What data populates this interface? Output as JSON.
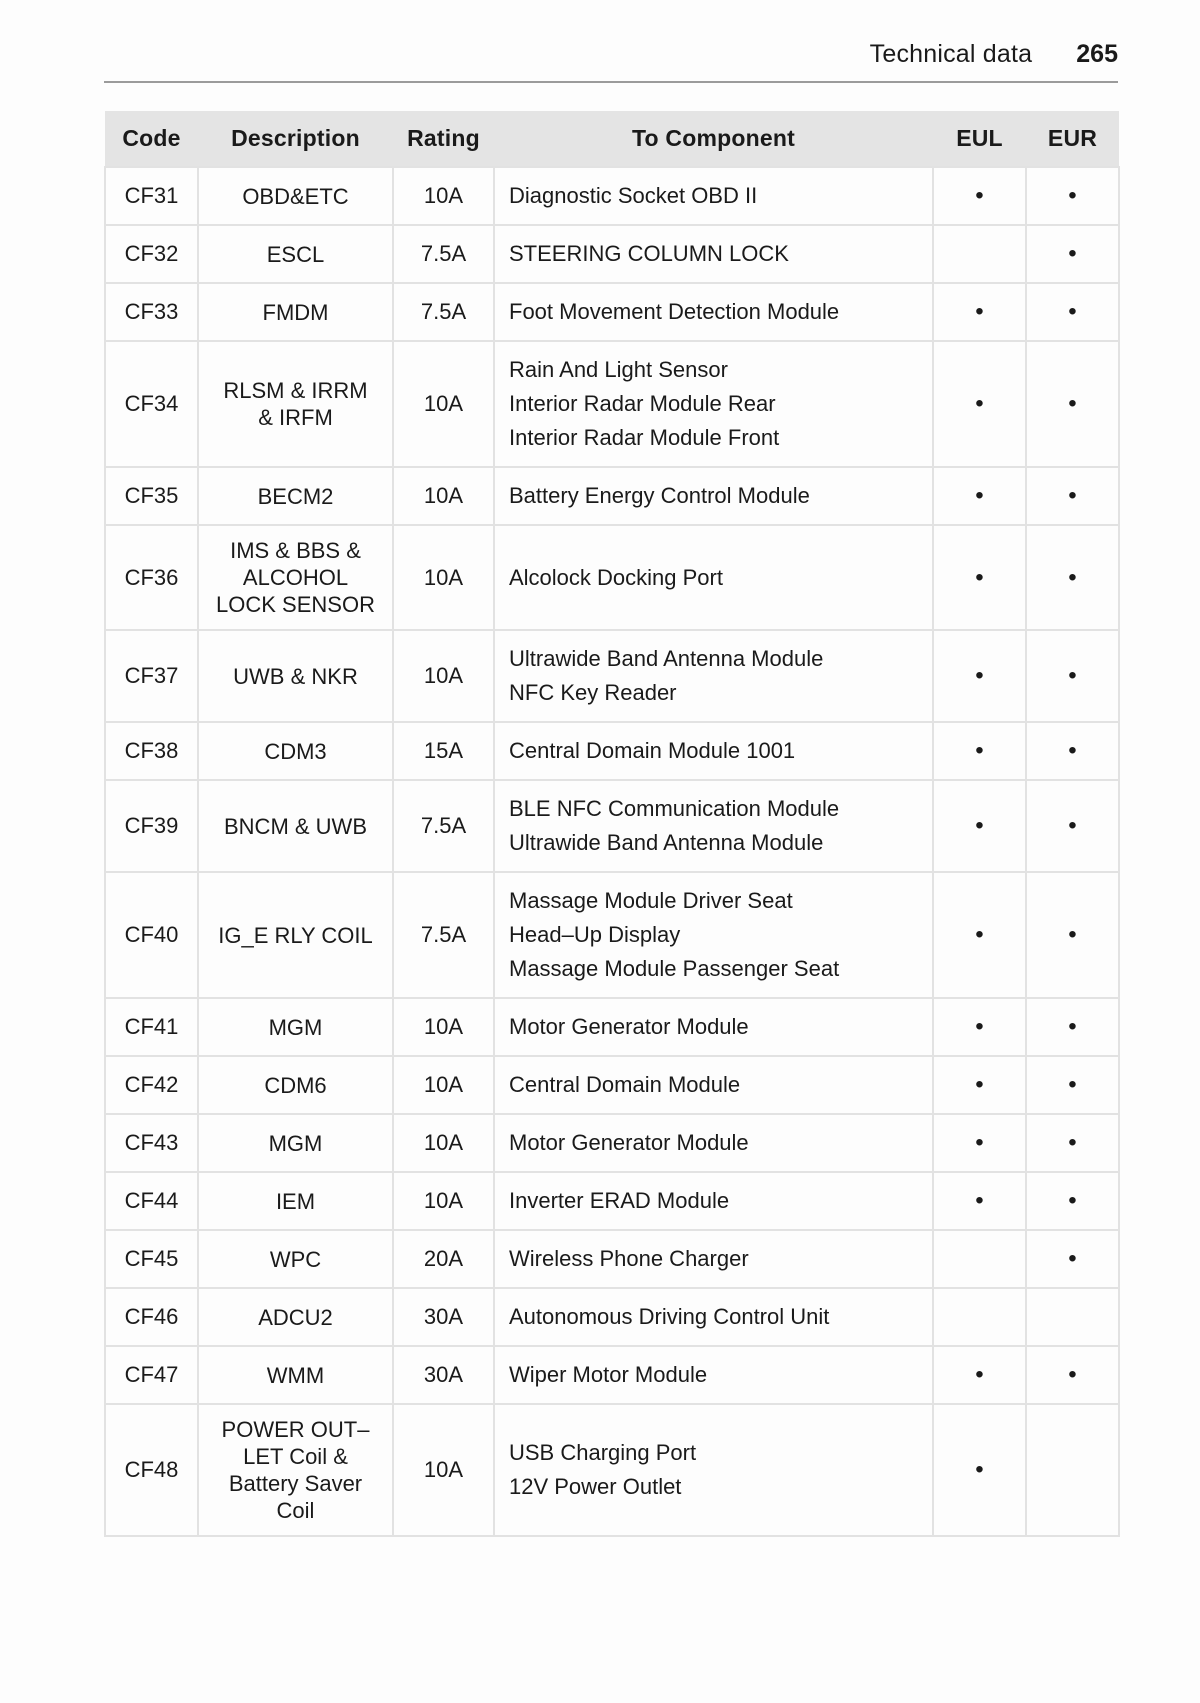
{
  "page_header": {
    "section": "Technical data",
    "page_number": "265"
  },
  "table": {
    "columns": [
      "Code",
      "Description",
      "Rating",
      "To Component",
      "EUL",
      "EUR"
    ],
    "availability_marker": "•",
    "rows": [
      {
        "code": "CF31",
        "description": "OBD&ETC",
        "rating": "10A",
        "components": [
          "Diagnostic Socket OBD II"
        ],
        "eul": "•",
        "eur": "•"
      },
      {
        "code": "CF32",
        "description": "ESCL",
        "rating": "7.5A",
        "components": [
          "STEERING COLUMN LOCK"
        ],
        "eul": "",
        "eur": "•"
      },
      {
        "code": "CF33",
        "description": "FMDM",
        "rating": "7.5A",
        "components": [
          "Foot Movement Detection Module"
        ],
        "eul": "•",
        "eur": "•"
      },
      {
        "code": "CF34",
        "description": "RLSM & IRRM\n& IRFM",
        "rating": "10A",
        "components": [
          "Rain And Light Sensor",
          "Interior Radar Module Rear",
          "Interior Radar Module Front"
        ],
        "eul": "•",
        "eur": "•"
      },
      {
        "code": "CF35",
        "description": "BECM2",
        "rating": "10A",
        "components": [
          "Battery Energy Control Module"
        ],
        "eul": "•",
        "eur": "•"
      },
      {
        "code": "CF36",
        "description": "IMS & BBS &\nALCOHOL\nLOCK SENSOR",
        "rating": "10A",
        "components": [
          "Alcolock Docking Port"
        ],
        "eul": "•",
        "eur": "•"
      },
      {
        "code": "CF37",
        "description": "UWB & NKR",
        "rating": "10A",
        "components": [
          "Ultrawide Band Antenna Module",
          "NFC Key Reader"
        ],
        "eul": "•",
        "eur": "•"
      },
      {
        "code": "CF38",
        "description": "CDM3",
        "rating": "15A",
        "components": [
          "Central Domain Module 1001"
        ],
        "eul": "•",
        "eur": "•"
      },
      {
        "code": "CF39",
        "description": "BNCM & UWB",
        "rating": "7.5A",
        "components": [
          "BLE NFC Communication Module",
          "Ultrawide Band Antenna Module"
        ],
        "eul": "•",
        "eur": "•"
      },
      {
        "code": "CF40",
        "description": "IG_E RLY COIL",
        "rating": "7.5A",
        "components": [
          "Massage Module Driver Seat",
          "Head–Up Display",
          "Massage Module Passenger Seat"
        ],
        "eul": "•",
        "eur": "•"
      },
      {
        "code": "CF41",
        "description": "MGM",
        "rating": "10A",
        "components": [
          "Motor Generator Module"
        ],
        "eul": "•",
        "eur": "•"
      },
      {
        "code": "CF42",
        "description": "CDM6",
        "rating": "10A",
        "components": [
          "Central Domain Module"
        ],
        "eul": "•",
        "eur": "•"
      },
      {
        "code": "CF43",
        "description": "MGM",
        "rating": "10A",
        "components": [
          "Motor Generator Module"
        ],
        "eul": "•",
        "eur": "•"
      },
      {
        "code": "CF44",
        "description": "IEM",
        "rating": "10A",
        "components": [
          "Inverter ERAD Module"
        ],
        "eul": "•",
        "eur": "•"
      },
      {
        "code": "CF45",
        "description": "WPC",
        "rating": "20A",
        "components": [
          "Wireless Phone Charger"
        ],
        "eul": "",
        "eur": "•"
      },
      {
        "code": "CF46",
        "description": "ADCU2",
        "rating": "30A",
        "components": [
          "Autonomous Driving Control Unit"
        ],
        "eul": "",
        "eur": ""
      },
      {
        "code": "CF47",
        "description": "WMM",
        "rating": "30A",
        "components": [
          "Wiper Motor Module"
        ],
        "eul": "•",
        "eur": "•"
      },
      {
        "code": "CF48",
        "description": "POWER OUT–\nLET Coil &\nBattery Saver\nCoil",
        "rating": "10A",
        "components": [
          "USB Charging Port",
          "12V Power Outlet"
        ],
        "eul": "•",
        "eur": ""
      }
    ]
  },
  "colors": {
    "page_background": "#fdfdfd",
    "table_header_background": "#e4e4e4",
    "table_border": "#e2e2e2",
    "text": "#1a1a1a",
    "header_rule": "#9b9b9b"
  }
}
